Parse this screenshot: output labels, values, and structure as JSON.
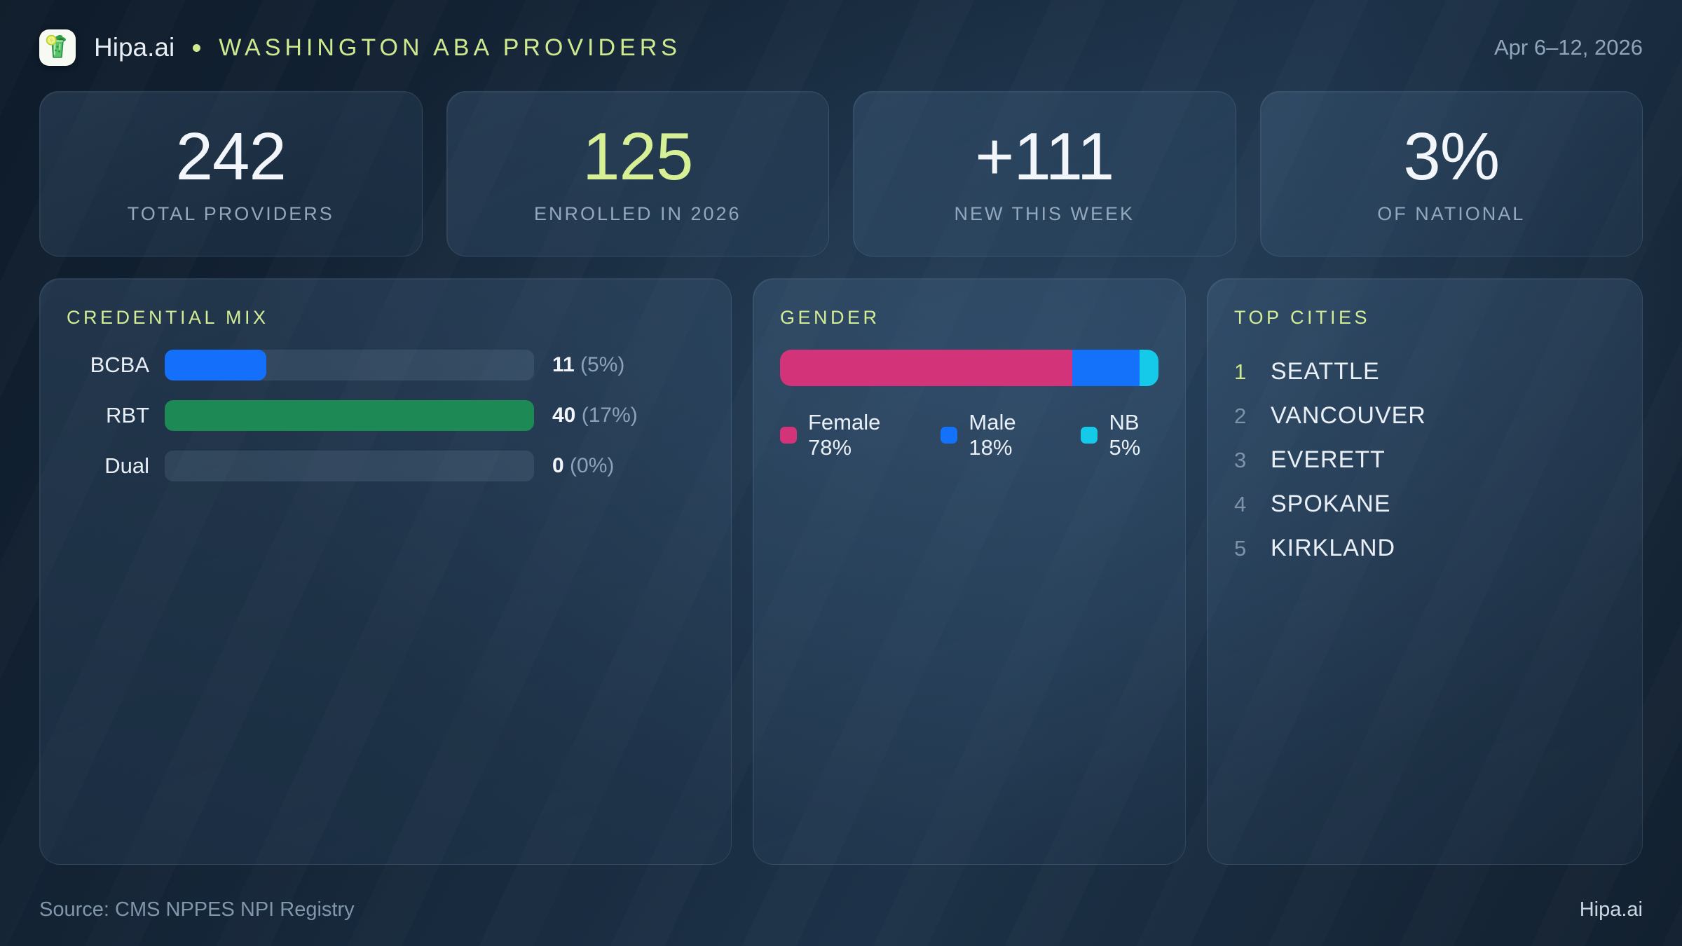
{
  "header": {
    "brand": "Hipa.ai",
    "title": "WASHINGTON ABA PROVIDERS",
    "date_range": "Apr 6–12, 2026"
  },
  "stats": [
    {
      "value": "242",
      "label": "TOTAL PROVIDERS",
      "accent": false
    },
    {
      "value": "125",
      "label": "ENROLLED IN 2026",
      "accent": true
    },
    {
      "value": "+111",
      "label": "NEW THIS WEEK",
      "accent": false
    },
    {
      "value": "3%",
      "label": "OF NATIONAL",
      "accent": false
    }
  ],
  "chart_data": [
    {
      "type": "bar",
      "orientation": "horizontal",
      "title": "CREDENTIAL MIX",
      "categories": [
        "BCBA",
        "RBT",
        "Dual"
      ],
      "values": [
        11,
        40,
        0
      ],
      "percents": [
        "5%",
        "17%",
        "0%"
      ],
      "value_labels": [
        "11 (5%)",
        "40 (17%)",
        "0 (0%)"
      ],
      "colors": [
        "#1470fa",
        "#1d8a55",
        "none"
      ],
      "xlim": [
        0,
        40
      ],
      "grid": false
    },
    {
      "type": "stacked-bar",
      "title": "GENDER",
      "categories": [
        "Female",
        "Male",
        "NB"
      ],
      "values": [
        78,
        18,
        5
      ],
      "unit": "%",
      "colors": [
        "#d23379",
        "#1371fa",
        "#15c9e9"
      ],
      "legend_position": "bottom",
      "legend_labels": [
        "Female 78%",
        "Male 18%",
        "NB 5%"
      ]
    }
  ],
  "top_cities": {
    "title": "TOP CITIES",
    "items": [
      "SEATTLE",
      "VANCOUVER",
      "EVERETT",
      "SPOKANE",
      "KIRKLAND"
    ]
  },
  "footer": {
    "source": "Source: CMS NPPES NPI Registry",
    "brand": "Hipa.ai"
  },
  "colors": {
    "accent_green_number": "#d7f095",
    "title_green": "#d3ec95",
    "bar_blue": "#1470fa",
    "bar_green": "#1d8a55",
    "female_pink": "#d23379",
    "male_blue": "#1371fa",
    "nb_cyan": "#15c9e9",
    "muted_text": "#93a8bd"
  }
}
